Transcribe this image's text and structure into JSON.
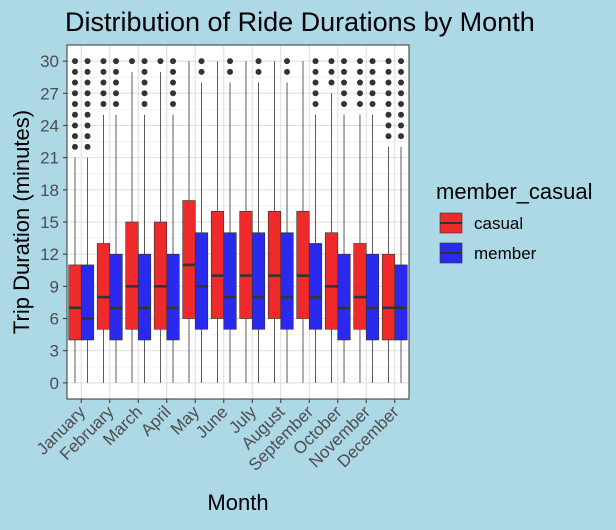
{
  "chart_data": {
    "type": "box",
    "title": "Distribution of Ride Durations by Month",
    "xlabel": "Month",
    "ylabel": "Trip Duration (minutes)",
    "ylim": [
      -1.5,
      31.5
    ],
    "yticks": [
      0,
      3,
      6,
      9,
      12,
      15,
      18,
      21,
      24,
      27,
      30
    ],
    "grid": true,
    "legend": {
      "title": "member_casual",
      "position": "right"
    },
    "categories": [
      "January",
      "February",
      "March",
      "April",
      "May",
      "June",
      "July",
      "August",
      "September",
      "October",
      "November",
      "December"
    ],
    "series": [
      {
        "name": "casual",
        "color": "#ee2a2a",
        "boxes": [
          {
            "min": 0,
            "q1": 4,
            "median": 7,
            "q3": 11,
            "max": 21,
            "outliers": [
              22,
              23,
              24,
              25,
              26,
              27,
              28,
              29,
              30
            ]
          },
          {
            "min": 0,
            "q1": 5,
            "median": 8,
            "q3": 13,
            "max": 25,
            "outliers": [
              26,
              27,
              28,
              29,
              30
            ]
          },
          {
            "min": 0,
            "q1": 5,
            "median": 9,
            "q3": 15,
            "max": 29,
            "outliers": [
              30
            ]
          },
          {
            "min": 0,
            "q1": 5,
            "median": 9,
            "q3": 15,
            "max": 29,
            "outliers": [
              30
            ]
          },
          {
            "min": 0,
            "q1": 6,
            "median": 11,
            "q3": 17,
            "max": 30,
            "outliers": []
          },
          {
            "min": 0,
            "q1": 6,
            "median": 10,
            "q3": 16,
            "max": 30,
            "outliers": []
          },
          {
            "min": 0,
            "q1": 6,
            "median": 10,
            "q3": 16,
            "max": 30,
            "outliers": []
          },
          {
            "min": 0,
            "q1": 6,
            "median": 10,
            "q3": 16,
            "max": 30,
            "outliers": []
          },
          {
            "min": 0,
            "q1": 6,
            "median": 10,
            "q3": 16,
            "max": 30,
            "outliers": []
          },
          {
            "min": 0,
            "q1": 5,
            "median": 9,
            "q3": 14,
            "max": 27,
            "outliers": [
              28,
              29,
              30
            ]
          },
          {
            "min": 0,
            "q1": 5,
            "median": 8,
            "q3": 13,
            "max": 25,
            "outliers": [
              26,
              27,
              28,
              29,
              30
            ]
          },
          {
            "min": 0,
            "q1": 4,
            "median": 7,
            "q3": 12,
            "max": 22,
            "outliers": [
              23,
              24,
              25,
              26,
              27,
              28,
              29,
              30
            ]
          }
        ]
      },
      {
        "name": "member",
        "color": "#2a2aee",
        "boxes": [
          {
            "min": 0,
            "q1": 4,
            "median": 6,
            "q3": 11,
            "max": 21,
            "outliers": [
              22,
              23,
              24,
              25,
              26,
              27,
              28,
              29,
              30
            ]
          },
          {
            "min": 0,
            "q1": 4,
            "median": 7,
            "q3": 12,
            "max": 25,
            "outliers": [
              26,
              27,
              28,
              29,
              30
            ]
          },
          {
            "min": 0,
            "q1": 4,
            "median": 7,
            "q3": 12,
            "max": 25,
            "outliers": [
              26,
              27,
              28,
              29,
              30
            ]
          },
          {
            "min": 0,
            "q1": 4,
            "median": 7,
            "q3": 12,
            "max": 25,
            "outliers": [
              26,
              27,
              28,
              29,
              30
            ]
          },
          {
            "min": 0,
            "q1": 5,
            "median": 9,
            "q3": 14,
            "max": 28,
            "outliers": [
              29,
              30
            ]
          },
          {
            "min": 0,
            "q1": 5,
            "median": 8,
            "q3": 14,
            "max": 28,
            "outliers": [
              29,
              30
            ]
          },
          {
            "min": 0,
            "q1": 5,
            "median": 8,
            "q3": 14,
            "max": 28,
            "outliers": [
              29,
              30
            ]
          },
          {
            "min": 0,
            "q1": 5,
            "median": 8,
            "q3": 14,
            "max": 28,
            "outliers": [
              29,
              30
            ]
          },
          {
            "min": 0,
            "q1": 5,
            "median": 8,
            "q3": 13,
            "max": 25,
            "outliers": [
              26,
              27,
              28,
              29,
              30
            ]
          },
          {
            "min": 0,
            "q1": 4,
            "median": 7,
            "q3": 12,
            "max": 25,
            "outliers": [
              26,
              27,
              28,
              29,
              30
            ]
          },
          {
            "min": 0,
            "q1": 4,
            "median": 7,
            "q3": 12,
            "max": 25,
            "outliers": [
              26,
              27,
              28,
              29,
              30
            ]
          },
          {
            "min": 0,
            "q1": 4,
            "median": 7,
            "q3": 11,
            "max": 22,
            "outliers": [
              23,
              24,
              25,
              26,
              27,
              28,
              29,
              30
            ]
          }
        ]
      }
    ]
  }
}
